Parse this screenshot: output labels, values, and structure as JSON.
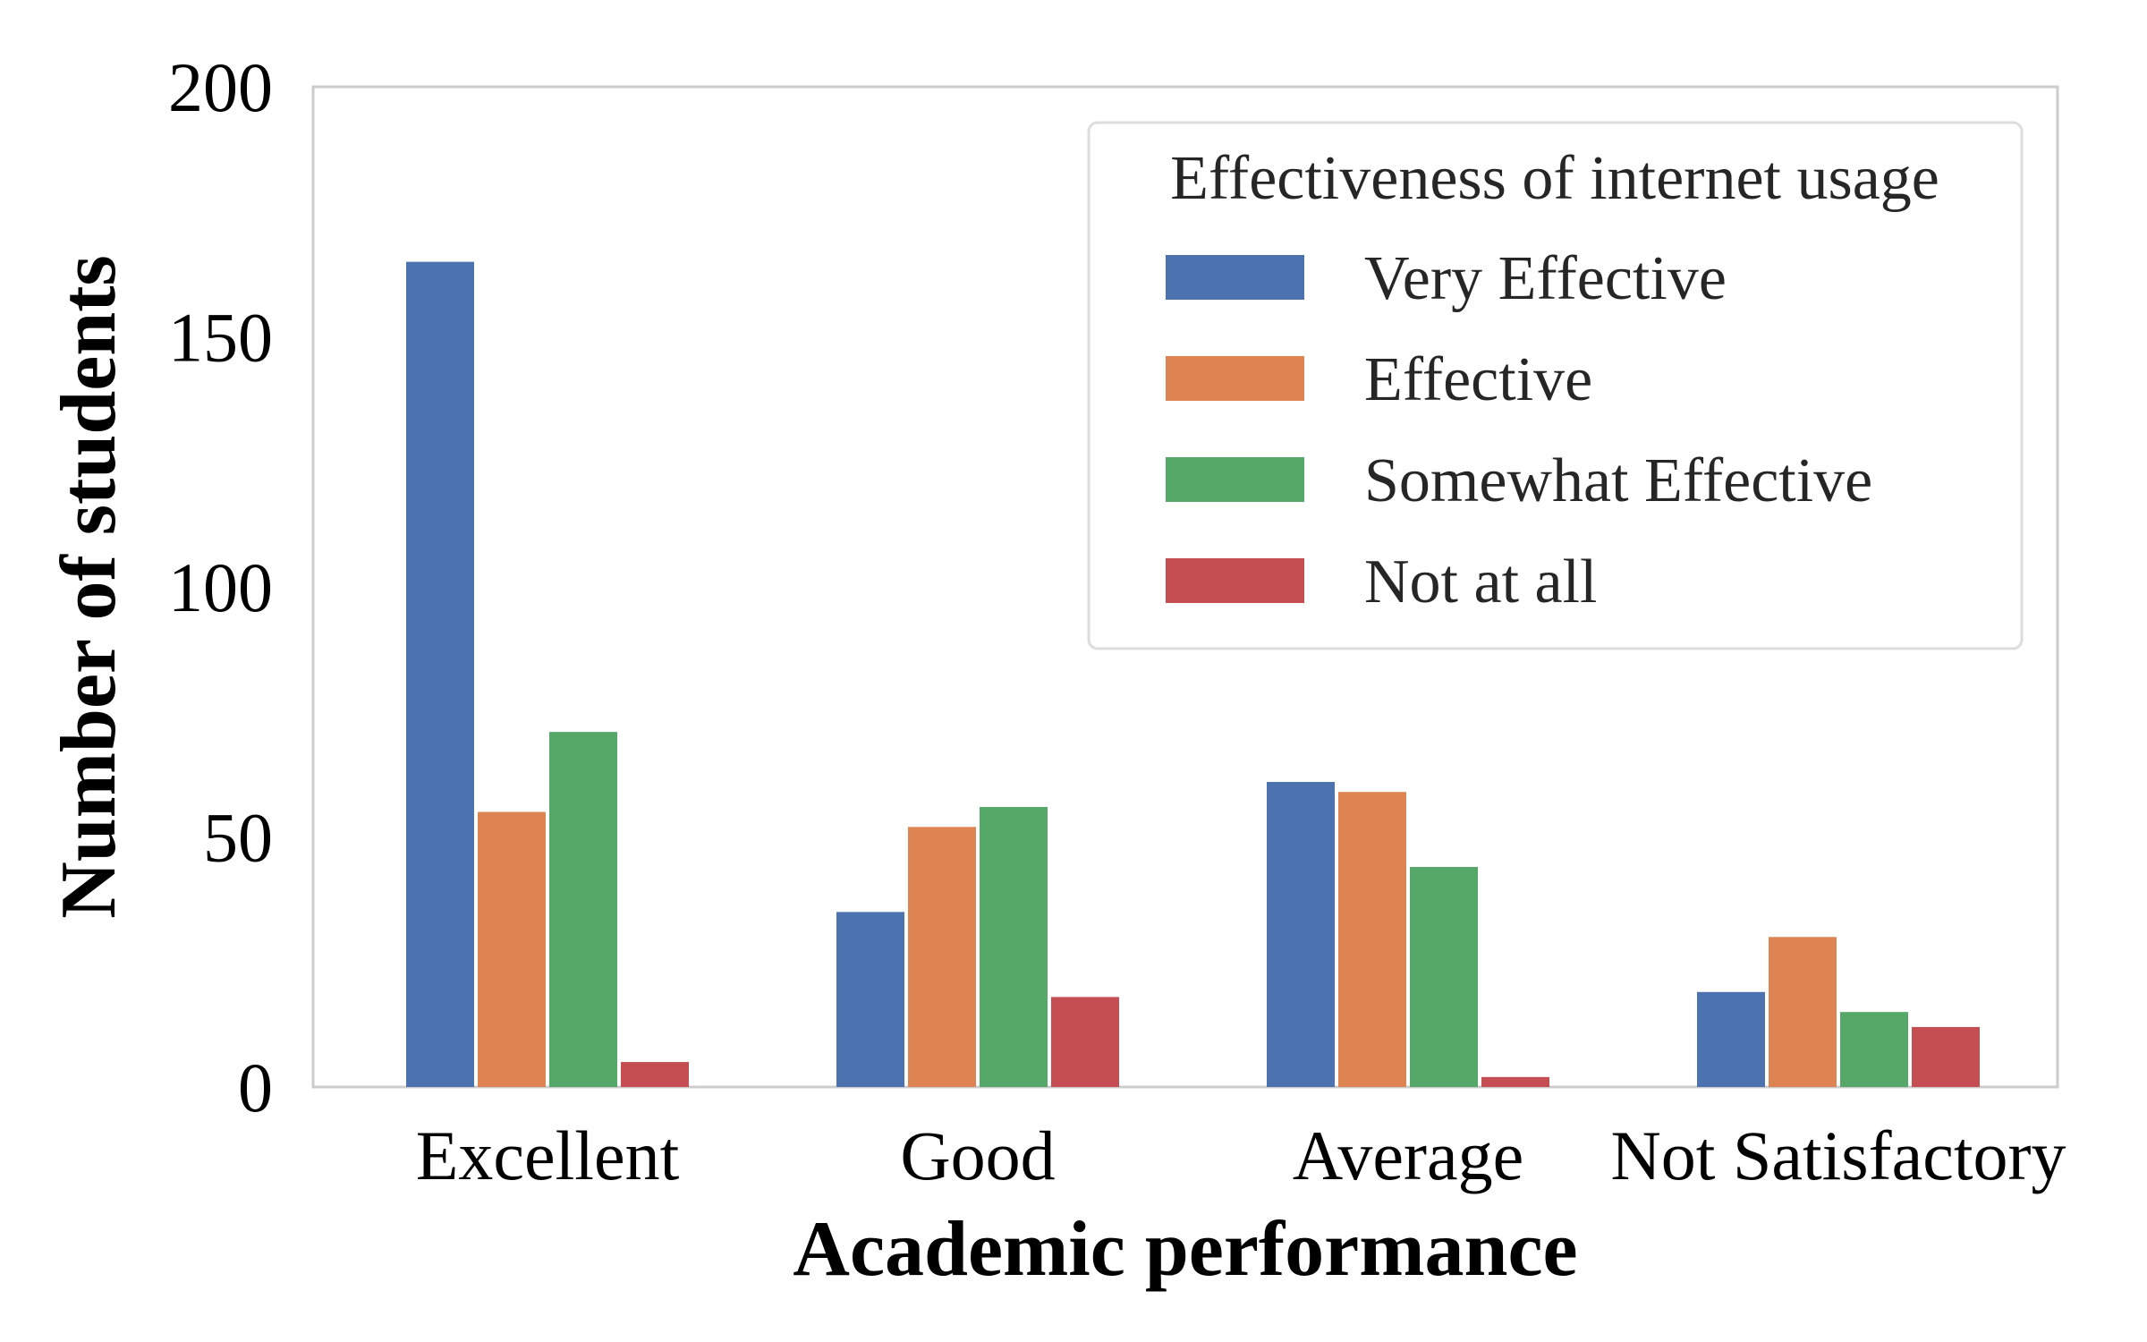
{
  "chart_data": {
    "type": "bar",
    "title": "",
    "xlabel": "Academic performance",
    "ylabel": "Number of students",
    "categories": [
      "Excellent",
      "Good",
      "Average",
      "Not Satisfactory"
    ],
    "ylim": [
      0,
      200
    ],
    "yticks": [
      0,
      50,
      100,
      150,
      200
    ],
    "grid": false,
    "legend": {
      "title": "Effectiveness of internet usage",
      "position": "top-right"
    },
    "series": [
      {
        "name": "Very Effective",
        "color": "#4C72B0",
        "values": [
          165,
          35,
          61,
          19
        ]
      },
      {
        "name": "Effective",
        "color": "#DD8452",
        "values": [
          55,
          52,
          59,
          30
        ]
      },
      {
        "name": "Somewhat Effective",
        "color": "#55A868",
        "values": [
          71,
          56,
          44,
          15
        ]
      },
      {
        "name": "Not at all",
        "color": "#C44E52",
        "values": [
          5,
          18,
          2,
          12
        ]
      }
    ]
  }
}
